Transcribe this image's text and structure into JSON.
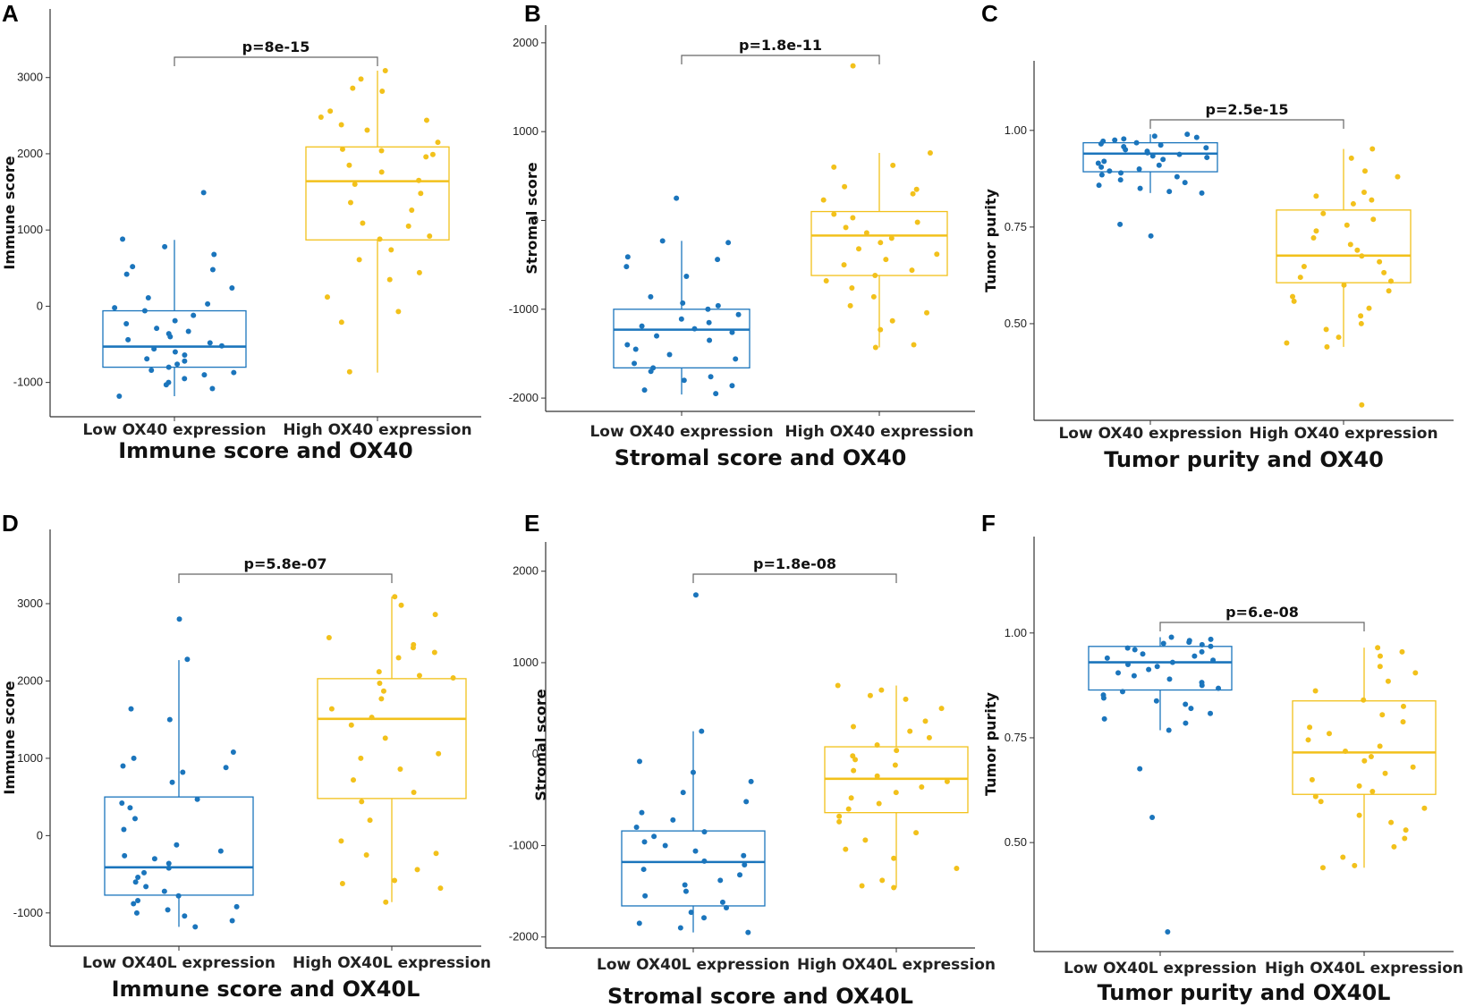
{
  "colors": {
    "low": "#1b75bc",
    "high": "#f2c11b",
    "axis": "#333333",
    "bracket": "#666666"
  },
  "chart_data": [
    {
      "letter": "A",
      "type": "box",
      "title": "Immune score and OX40",
      "ylabel": "Immune score",
      "categories": [
        "Low OX40 expression",
        "High OX40 expression"
      ],
      "ylim": [
        -1450,
        3900
      ],
      "yticks": [
        -1000,
        0,
        1000,
        2000,
        3000
      ],
      "p_value": "p=8e-15",
      "boxes": [
        {
          "q1": -800,
          "median": -530,
          "q3": -60,
          "whisker_low": -1180,
          "whisker_high": 870,
          "points": [
            1490,
            880,
            780,
            680,
            520,
            480,
            420,
            240,
            110,
            30,
            -20,
            -60,
            -120,
            -190,
            -230,
            -290,
            -330,
            -360,
            -400,
            -440,
            -480,
            -520,
            -560,
            -600,
            -640,
            -690,
            -720,
            -760,
            -800,
            -840,
            -870,
            -900,
            -950,
            -1000,
            -1030,
            -1080,
            -1180
          ]
        },
        {
          "q1": 870,
          "median": 1640,
          "q3": 2090,
          "whisker_low": -870,
          "whisker_high": 3090,
          "points": [
            3090,
            2980,
            2860,
            2820,
            2560,
            2480,
            2440,
            2380,
            2310,
            2150,
            2060,
            2040,
            1990,
            1960,
            1850,
            1760,
            1650,
            1600,
            1480,
            1360,
            1260,
            1090,
            1050,
            920,
            880,
            740,
            610,
            440,
            350,
            120,
            -70,
            -210,
            -860
          ]
        }
      ]
    },
    {
      "letter": "B",
      "type": "box",
      "title": "Stromal score and OX40",
      "ylabel": "Stromal score",
      "categories": [
        "Low OX40 expression",
        "High OX40 expression"
      ],
      "ylim": [
        -2150,
        2200
      ],
      "yticks": [
        -2000,
        -1000,
        0,
        1000,
        2000
      ],
      "p_value": "p=1.8e-11",
      "boxes": [
        {
          "q1": -1660,
          "median": -1230,
          "q3": -1000,
          "whisker_low": -1960,
          "whisker_high": -230,
          "points": [
            250,
            -230,
            -250,
            -410,
            -440,
            -520,
            -630,
            -860,
            -930,
            -960,
            -1000,
            -1060,
            -1110,
            -1150,
            -1190,
            -1220,
            -1260,
            -1300,
            -1350,
            -1400,
            -1450,
            -1510,
            -1560,
            -1610,
            -1660,
            -1700,
            -1760,
            -1800,
            -1860,
            -1910,
            -1950
          ]
        },
        {
          "q1": -620,
          "median": -170,
          "q3": 100,
          "whisker_low": -1430,
          "whisker_high": 760,
          "points": [
            1740,
            760,
            620,
            600,
            380,
            350,
            300,
            230,
            70,
            30,
            -20,
            -80,
            -140,
            -200,
            -250,
            -320,
            -380,
            -440,
            -500,
            -560,
            -620,
            -680,
            -760,
            -860,
            -960,
            -1040,
            -1130,
            -1230,
            -1400,
            -1430
          ]
        }
      ]
    },
    {
      "letter": "C",
      "type": "box",
      "title": "Tumor purity and OX40",
      "ylabel": "Tumor purity",
      "categories": [
        "Low OX40 expression",
        "High OX40 expression"
      ],
      "ylim": [
        0.25,
        1.18
      ],
      "yticks": [
        0.5,
        0.75,
        1.0
      ],
      "ytick_labels": [
        "0.50",
        "0.75",
        "1.00"
      ],
      "p_value": "p=2.5e-15",
      "boxes": [
        {
          "q1": 0.893,
          "median": 0.94,
          "q3": 0.968,
          "whisker_low": 0.838,
          "whisker_high": 0.99,
          "points": [
            0.99,
            0.985,
            0.982,
            0.978,
            0.975,
            0.972,
            0.968,
            0.965,
            0.962,
            0.958,
            0.955,
            0.95,
            0.946,
            0.942,
            0.938,
            0.934,
            0.93,
            0.925,
            0.92,
            0.915,
            0.91,
            0.905,
            0.9,
            0.895,
            0.89,
            0.885,
            0.88,
            0.872,
            0.865,
            0.858,
            0.85,
            0.842,
            0.838,
            0.757,
            0.727
          ]
        },
        {
          "q1": 0.606,
          "median": 0.676,
          "q3": 0.794,
          "whisker_low": 0.44,
          "whisker_high": 0.952,
          "points": [
            0.952,
            0.928,
            0.895,
            0.88,
            0.84,
            0.83,
            0.82,
            0.81,
            0.785,
            0.77,
            0.755,
            0.74,
            0.722,
            0.705,
            0.69,
            0.675,
            0.66,
            0.648,
            0.632,
            0.62,
            0.61,
            0.6,
            0.585,
            0.57,
            0.558,
            0.54,
            0.52,
            0.5,
            0.485,
            0.465,
            0.45,
            0.44,
            0.29
          ]
        }
      ]
    },
    {
      "letter": "D",
      "type": "box",
      "title": "Immune score and OX40L",
      "ylabel": "Immune score",
      "categories": [
        "Low OX40L expression",
        "High OX40L expression"
      ],
      "ylim": [
        -1430,
        3960
      ],
      "yticks": [
        -1000,
        0,
        1000,
        2000,
        3000
      ],
      "p_value": "p=5.8e-07",
      "boxes": [
        {
          "q1": -770,
          "median": -410,
          "q3": 500,
          "whisker_low": -1180,
          "whisker_high": 2270,
          "points": [
            2800,
            2280,
            1640,
            1500,
            1080,
            1000,
            900,
            880,
            820,
            690,
            470,
            420,
            360,
            220,
            80,
            -120,
            -200,
            -260,
            -300,
            -360,
            -420,
            -480,
            -540,
            -600,
            -660,
            -720,
            -780,
            -840,
            -880,
            -920,
            -960,
            -1000,
            -1040,
            -1100,
            -1180
          ]
        },
        {
          "q1": 480,
          "median": 1510,
          "q3": 2030,
          "whisker_low": -860,
          "whisker_high": 3090,
          "points": [
            3090,
            2980,
            2860,
            2560,
            2470,
            2430,
            2370,
            2300,
            2120,
            2070,
            2040,
            1970,
            1870,
            1770,
            1640,
            1530,
            1430,
            1260,
            1060,
            1000,
            860,
            720,
            560,
            440,
            200,
            -70,
            -230,
            -250,
            -440,
            -580,
            -620,
            -680,
            -860
          ]
        }
      ]
    },
    {
      "letter": "E",
      "type": "box",
      "title": "Stromal score and OX40L",
      "ylabel": "Stromal score",
      "categories": [
        "Low OX40L expression",
        "High OX40L expression"
      ],
      "ylim": [
        -2120,
        2320
      ],
      "yticks": [
        -2000,
        -1000,
        0,
        1000,
        2000
      ],
      "p_value": "p=1.8e-08",
      "boxes": [
        {
          "q1": -1660,
          "median": -1180,
          "q3": -840,
          "whisker_low": -1950,
          "whisker_high": 250,
          "points": [
            1740,
            250,
            -80,
            -200,
            -300,
            -420,
            -520,
            -640,
            -720,
            -800,
            -850,
            -900,
            -960,
            -1000,
            -1060,
            -1110,
            -1170,
            -1210,
            -1260,
            -1320,
            -1380,
            -1430,
            -1500,
            -1550,
            -1620,
            -1680,
            -1730,
            -1790,
            -1850,
            -1900,
            -1950
          ]
        },
        {
          "q1": -640,
          "median": -270,
          "q3": 80,
          "whisker_low": -1460,
          "whisker_high": 750,
          "points": [
            750,
            700,
            640,
            600,
            500,
            360,
            300,
            250,
            180,
            100,
            40,
            -20,
            -60,
            -120,
            -180,
            -240,
            -300,
            -360,
            -420,
            -480,
            -540,
            -600,
            -680,
            -740,
            -860,
            -940,
            -1040,
            -1140,
            -1250,
            -1380,
            -1440,
            -1460
          ]
        }
      ]
    },
    {
      "letter": "F",
      "type": "box",
      "title": "Tumor purity and OX40L",
      "ylabel": "Tumor purity",
      "categories": [
        "Low OX40L expression",
        "High OX40L expression"
      ],
      "ylim": [
        0.24,
        1.23
      ],
      "yticks": [
        0.5,
        0.75,
        1.0
      ],
      "ytick_labels": [
        "0.50",
        "0.75",
        "1.00"
      ],
      "p_value": "p=6.e-08",
      "boxes": [
        {
          "q1": 0.864,
          "median": 0.93,
          "q3": 0.968,
          "whisker_low": 0.768,
          "whisker_high": 0.99,
          "points": [
            0.99,
            0.985,
            0.982,
            0.978,
            0.975,
            0.972,
            0.968,
            0.964,
            0.96,
            0.955,
            0.95,
            0.945,
            0.94,
            0.935,
            0.93,
            0.925,
            0.92,
            0.913,
            0.905,
            0.898,
            0.89,
            0.882,
            0.875,
            0.868,
            0.86,
            0.852,
            0.845,
            0.838,
            0.83,
            0.82,
            0.808,
            0.795,
            0.785,
            0.768,
            0.676,
            0.56,
            0.287
          ]
        },
        {
          "q1": 0.615,
          "median": 0.715,
          "q3": 0.838,
          "whisker_low": 0.44,
          "whisker_high": 0.965,
          "points": [
            0.965,
            0.955,
            0.945,
            0.92,
            0.905,
            0.885,
            0.862,
            0.84,
            0.825,
            0.805,
            0.788,
            0.775,
            0.76,
            0.745,
            0.73,
            0.718,
            0.705,
            0.695,
            0.68,
            0.665,
            0.65,
            0.635,
            0.622,
            0.61,
            0.598,
            0.582,
            0.565,
            0.548,
            0.53,
            0.51,
            0.49,
            0.465,
            0.445,
            0.44
          ]
        }
      ]
    }
  ]
}
